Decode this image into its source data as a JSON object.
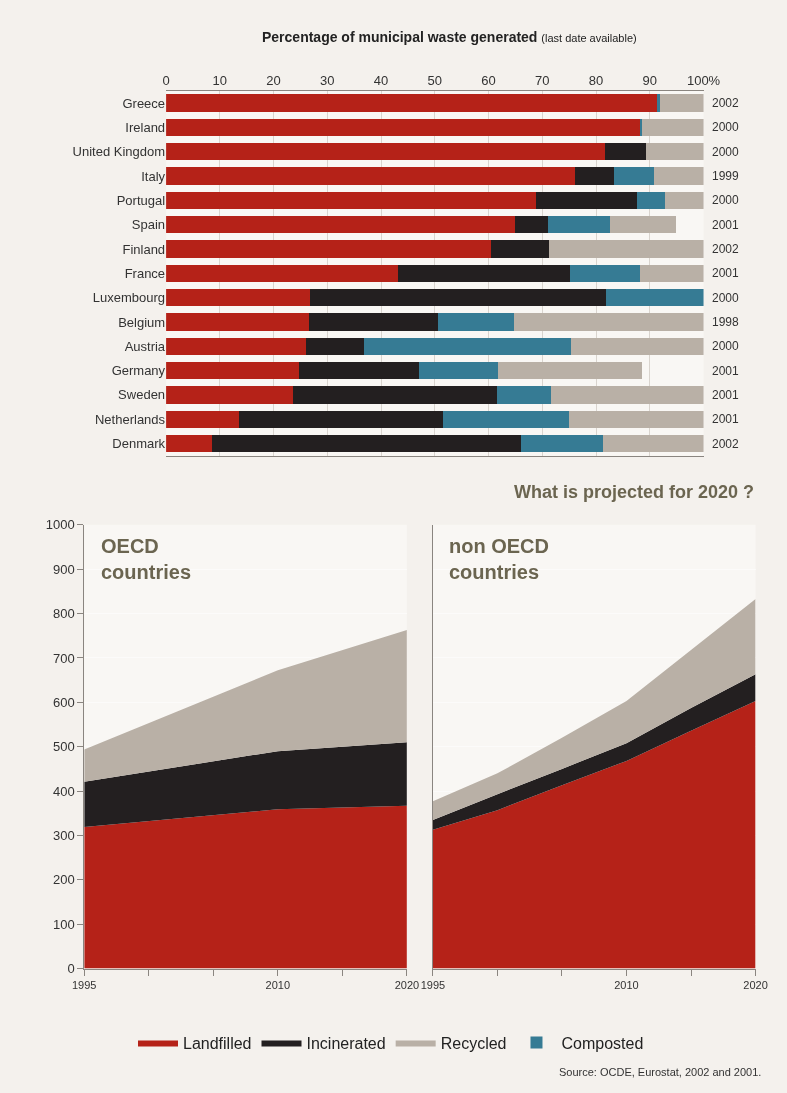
{
  "chart_data": [
    {
      "type": "bar",
      "orientation": "horizontal",
      "stacked": true,
      "title": "Percentage of municipal waste generated",
      "subtitle": "(last date available)",
      "categories": [
        "Greece",
        "Ireland",
        "United Kingdom",
        "Italy",
        "Portugal",
        "Spain",
        "Finland",
        "France",
        "Luxembourg",
        "Belgium",
        "Austria",
        "Germany",
        "Sweden",
        "Netherlands",
        "Denmark"
      ],
      "series": [
        {
          "name": "Landfilled",
          "color": "#b52218",
          "values": [
            91.3,
            88.1,
            81.6,
            76.1,
            68.8,
            64.9,
            60.4,
            43.1,
            26.7,
            26.5,
            26.1,
            24.8,
            23.7,
            13.5,
            8.5
          ]
        },
        {
          "name": "Incinerated",
          "color": "#231f20",
          "values": [
            0,
            0,
            7.6,
            7.3,
            18.9,
            6.1,
            10.9,
            32.1,
            55.2,
            24.0,
            10.7,
            22.3,
            37.9,
            38.1,
            57.6
          ]
        },
        {
          "name": "Composted",
          "color": "#367b94",
          "values": [
            0.6,
            0.5,
            0,
            7.4,
            5.2,
            11.6,
            0,
            13.0,
            18.1,
            14.3,
            38.6,
            14.7,
            10.0,
            23.3,
            15.1
          ]
        },
        {
          "name": "Recycled",
          "color": "#b9b0a6",
          "values": [
            8.1,
            11.4,
            10.8,
            9.2,
            7.1,
            12.2,
            28.7,
            11.8,
            0,
            35.2,
            24.6,
            26.7,
            28.4,
            25.1,
            18.8
          ]
        }
      ],
      "xlim": [
        0,
        100
      ],
      "xticks": [
        0,
        10,
        20,
        30,
        40,
        50,
        60,
        70,
        80,
        90,
        {
          "value": 100,
          "label": "100%"
        }
      ],
      "grid": "x",
      "legend": "bottom",
      "annotations": [
        "2002",
        "2000",
        "2000",
        "1999",
        "2000",
        "2001",
        "2002",
        "2001",
        "2000",
        "1998",
        "2000",
        "2001",
        "2001",
        "2001",
        "2002"
      ]
    },
    {
      "type": "area",
      "stacked": true,
      "title": "OECD countries",
      "x": [
        1995,
        2010,
        2020
      ],
      "series": [
        {
          "name": "Landfilled",
          "color": "#b52218",
          "values": [
            319,
            359,
            367
          ]
        },
        {
          "name": "Incinerated",
          "color": "#231f20",
          "values": [
            102,
            131,
            143
          ]
        },
        {
          "name": "Recycled",
          "color": "#b9b0a6",
          "values": [
            73,
            182,
            253
          ]
        }
      ],
      "xlim": [
        1995,
        2020
      ],
      "xticks": [
        1995,
        {
          "value": 2000,
          "label": null
        },
        {
          "value": 2005,
          "label": null
        },
        2010,
        {
          "value": 2015,
          "label": null
        },
        2020
      ],
      "ylim": [
        0,
        1000
      ],
      "yticks": [
        0,
        100,
        200,
        300,
        400,
        500,
        600,
        700,
        800,
        900,
        1000
      ],
      "grid": "y",
      "legend": "bottom"
    },
    {
      "type": "area",
      "stacked": true,
      "title": "non OECD countries",
      "x": [
        1995,
        2000,
        2005,
        2010,
        2015,
        2020
      ],
      "series": [
        {
          "name": "Landfilled",
          "color": "#b52218",
          "values": [
            313,
            357,
            413,
            468,
            536,
            603
          ]
        },
        {
          "name": "Incinerated",
          "color": "#231f20",
          "values": [
            22,
            36,
            37,
            40,
            51,
            60
          ]
        },
        {
          "name": "Recycled",
          "color": "#b9b0a6",
          "values": [
            42,
            47,
            70,
            95,
            131,
            170
          ]
        }
      ],
      "xlim": [
        1995,
        2020
      ],
      "xticks": [
        1995,
        {
          "value": 2000,
          "label": null
        },
        {
          "value": 2005,
          "label": null
        },
        2010,
        {
          "value": 2015,
          "label": null
        },
        2020
      ],
      "ylim": [
        0,
        1000
      ],
      "yticks": [
        0,
        100,
        200,
        300,
        400,
        500,
        600,
        700,
        800,
        900,
        1000
      ],
      "grid": "y",
      "tick_labels": "x",
      "legend": "bottom",
      "annotations": [
        "What is projected for 2020 ?",
        "Source: OCDE, Eurostat, 2002 and 2001."
      ]
    }
  ]
}
